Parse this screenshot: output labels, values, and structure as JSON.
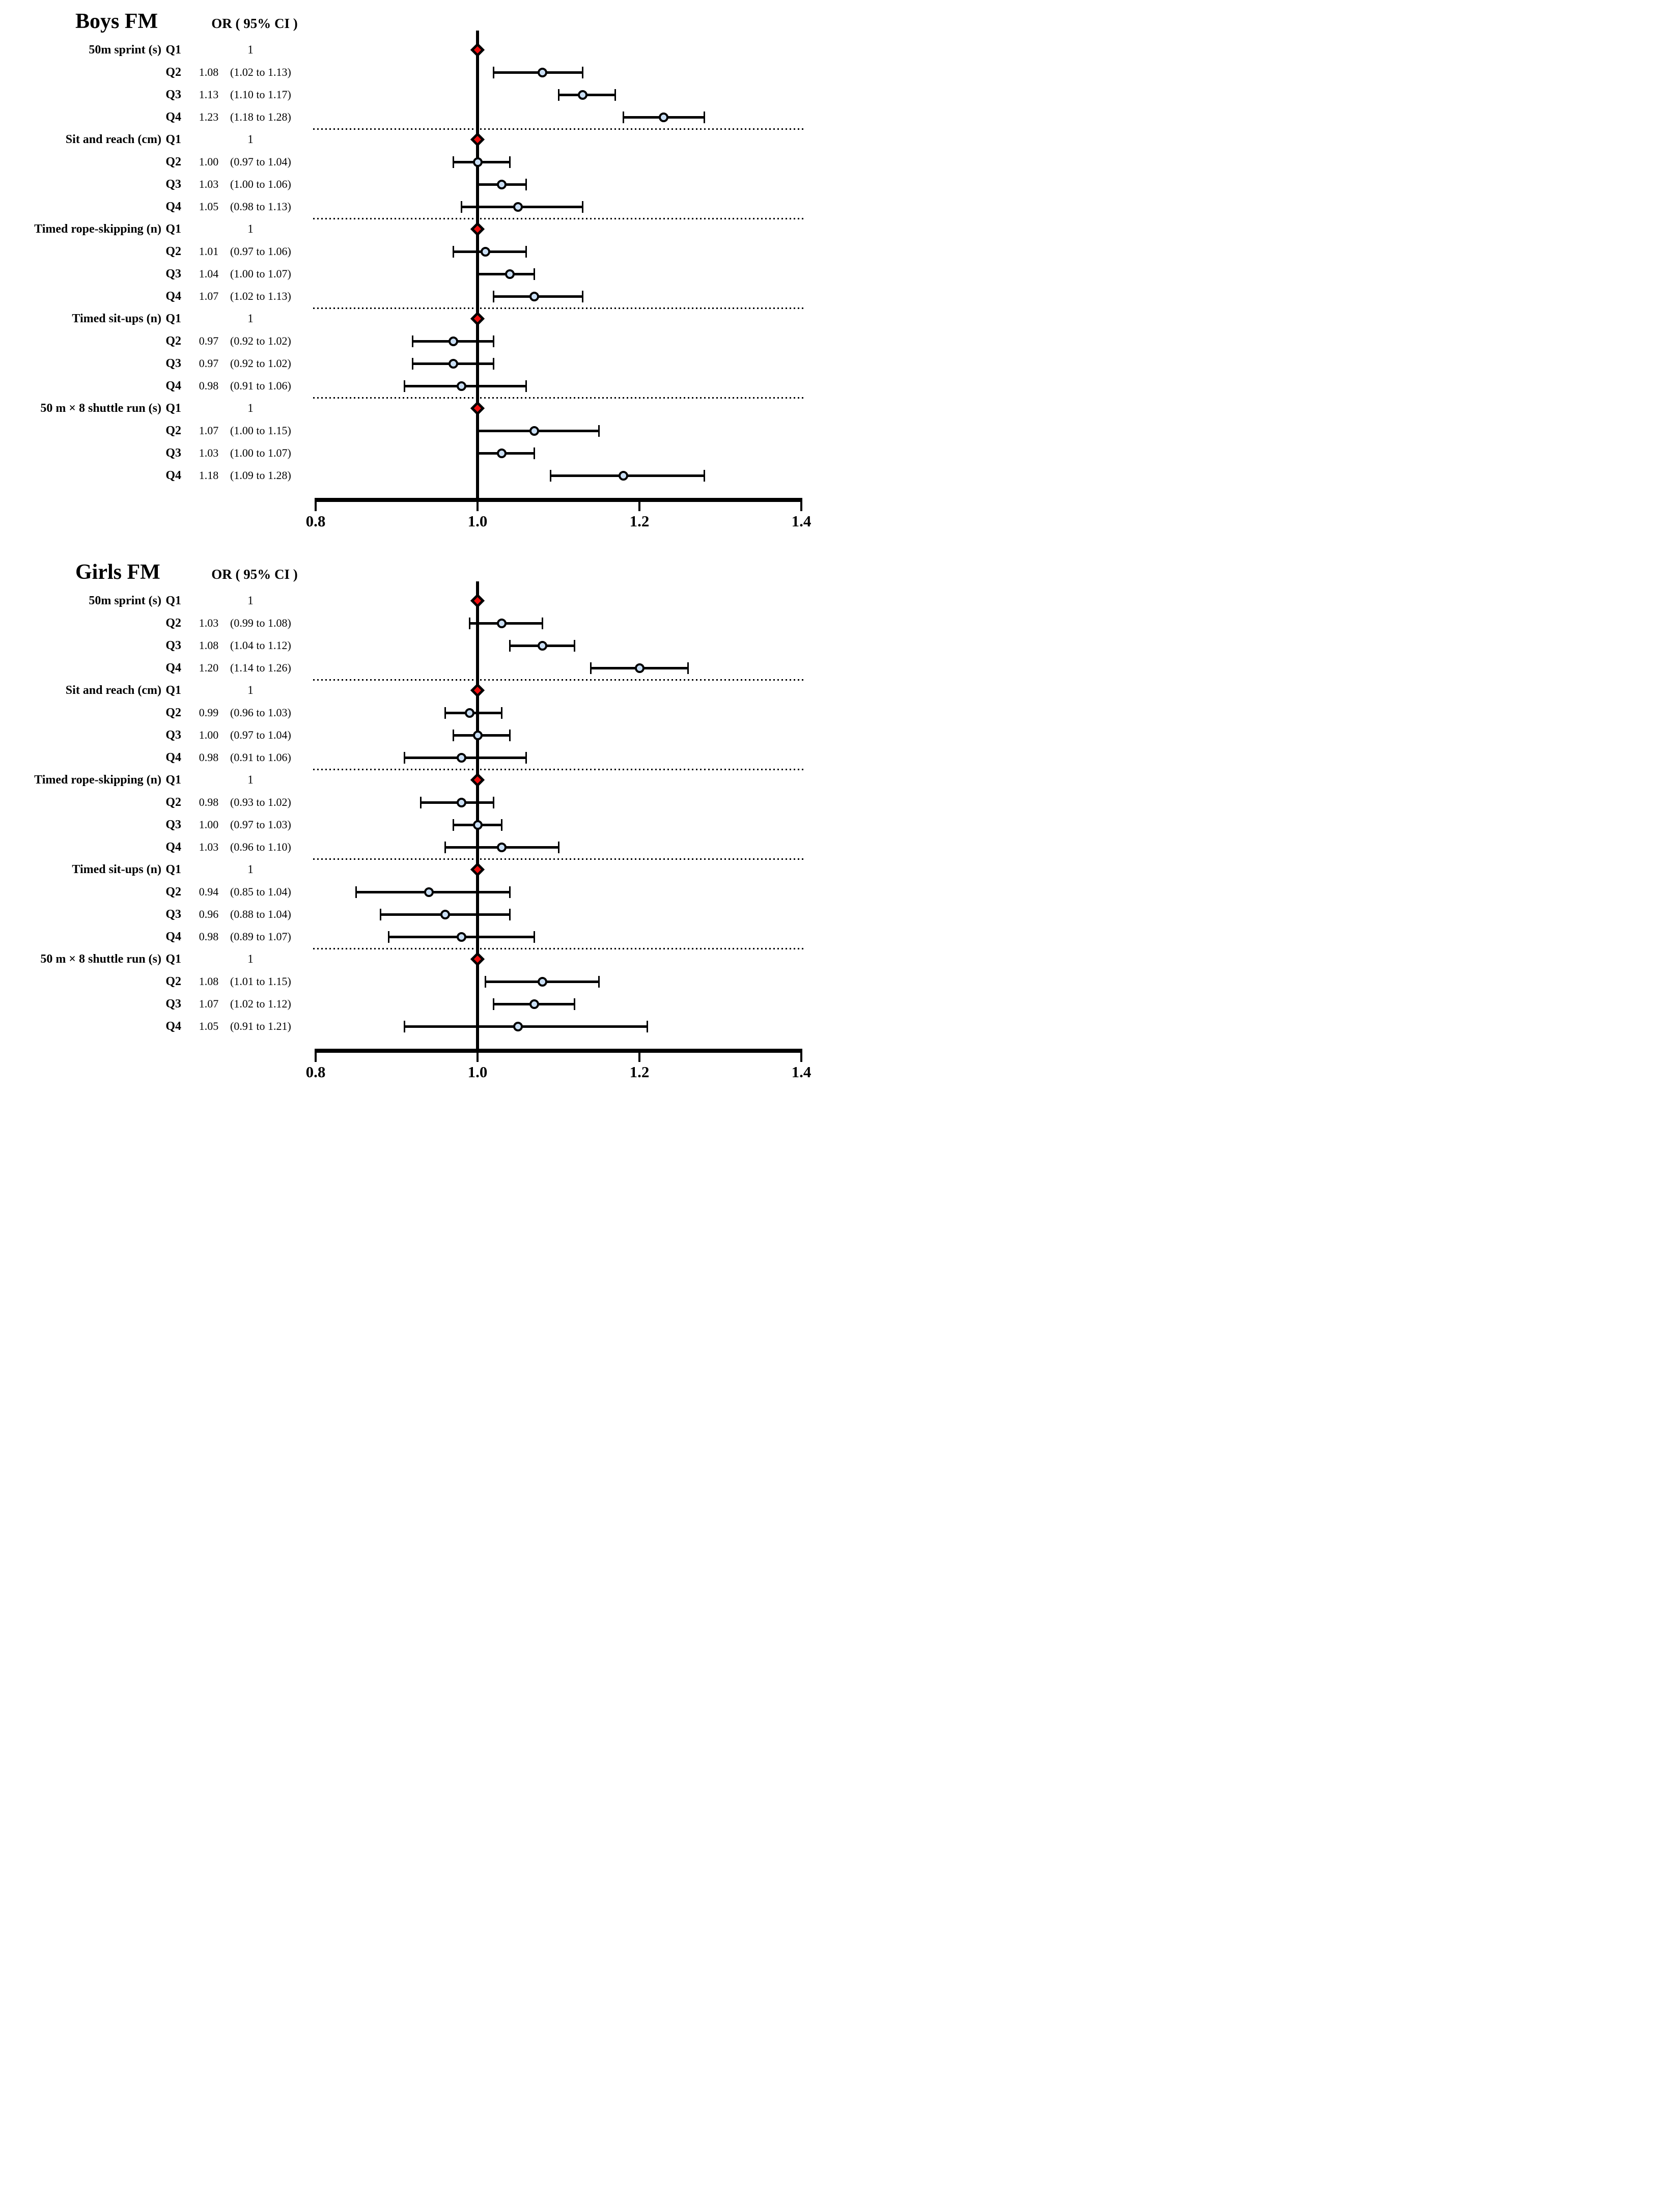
{
  "chart_data": {
    "type": "forest",
    "or_header": "OR ( 95% CI )",
    "x_axis": {
      "range": [
        0.8,
        1.4
      ],
      "ticks": [
        0.8,
        1.0,
        1.2,
        1.4
      ],
      "tick_labels": [
        "0.8",
        "1.0",
        "1.2",
        "1.4"
      ],
      "reference_line": 1.0
    },
    "colors": {
      "reference_diamond_fill": "#f10d0d",
      "estimate_marker_fill": "#cadff5",
      "marker_outline": "#000000"
    },
    "panels": [
      {
        "title": "Boys FM",
        "groups": [
          {
            "label": "50m sprint (s)",
            "rows": [
              {
                "q": "Q1",
                "or_label": "1",
                "reference": true
              },
              {
                "q": "Q2",
                "or_label": "1.08",
                "ci_label": "(1.02 to 1.13)",
                "or": 1.08,
                "lo": 1.02,
                "hi": 1.13
              },
              {
                "q": "Q3",
                "or_label": "1.13",
                "ci_label": "(1.10 to 1.17)",
                "or": 1.13,
                "lo": 1.1,
                "hi": 1.17
              },
              {
                "q": "Q4",
                "or_label": "1.23",
                "ci_label": "(1.18 to 1.28)",
                "or": 1.23,
                "lo": 1.18,
                "hi": 1.28
              }
            ]
          },
          {
            "label": "Sit and reach (cm)",
            "rows": [
              {
                "q": "Q1",
                "or_label": "1",
                "reference": true
              },
              {
                "q": "Q2",
                "or_label": "1.00",
                "ci_label": "(0.97 to 1.04)",
                "or": 1.0,
                "lo": 0.97,
                "hi": 1.04
              },
              {
                "q": "Q3",
                "or_label": "1.03",
                "ci_label": "(1.00 to 1.06)",
                "or": 1.03,
                "lo": 1.0,
                "hi": 1.06
              },
              {
                "q": "Q4",
                "or_label": "1.05",
                "ci_label": "(0.98 to 1.13)",
                "or": 1.05,
                "lo": 0.98,
                "hi": 1.13
              }
            ]
          },
          {
            "label": "Timed rope-skipping (n)",
            "rows": [
              {
                "q": "Q1",
                "or_label": "1",
                "reference": true
              },
              {
                "q": "Q2",
                "or_label": "1.01",
                "ci_label": "(0.97 to 1.06)",
                "or": 1.01,
                "lo": 0.97,
                "hi": 1.06
              },
              {
                "q": "Q3",
                "or_label": "1.04",
                "ci_label": "(1.00 to 1.07)",
                "or": 1.04,
                "lo": 1.0,
                "hi": 1.07
              },
              {
                "q": "Q4",
                "or_label": "1.07",
                "ci_label": "(1.02 to 1.13)",
                "or": 1.07,
                "lo": 1.02,
                "hi": 1.13
              }
            ]
          },
          {
            "label": "Timed sit-ups (n)",
            "rows": [
              {
                "q": "Q1",
                "or_label": "1",
                "reference": true
              },
              {
                "q": "Q2",
                "or_label": "0.97",
                "ci_label": "(0.92 to 1.02)",
                "or": 0.97,
                "lo": 0.92,
                "hi": 1.02
              },
              {
                "q": "Q3",
                "or_label": "0.97",
                "ci_label": "(0.92 to 1.02)",
                "or": 0.97,
                "lo": 0.92,
                "hi": 1.02
              },
              {
                "q": "Q4",
                "or_label": "0.98",
                "ci_label": "(0.91 to 1.06)",
                "or": 0.98,
                "lo": 0.91,
                "hi": 1.06
              }
            ]
          },
          {
            "label": "50 m × 8 shuttle run (s)",
            "rows": [
              {
                "q": "Q1",
                "or_label": "1",
                "reference": true
              },
              {
                "q": "Q2",
                "or_label": "1.07",
                "ci_label": "(1.00 to 1.15)",
                "or": 1.07,
                "lo": 1.0,
                "hi": 1.15
              },
              {
                "q": "Q3",
                "or_label": "1.03",
                "ci_label": "(1.00 to 1.07)",
                "or": 1.03,
                "lo": 1.0,
                "hi": 1.07
              },
              {
                "q": "Q4",
                "or_label": "1.18",
                "ci_label": "(1.09 to 1.28)",
                "or": 1.18,
                "lo": 1.09,
                "hi": 1.28
              }
            ]
          }
        ]
      },
      {
        "title": "Girls FM",
        "groups": [
          {
            "label": "50m sprint (s)",
            "rows": [
              {
                "q": "Q1",
                "or_label": "1",
                "reference": true
              },
              {
                "q": "Q2",
                "or_label": "1.03",
                "ci_label": "(0.99 to 1.08)",
                "or": 1.03,
                "lo": 0.99,
                "hi": 1.08
              },
              {
                "q": "Q3",
                "or_label": "1.08",
                "ci_label": "(1.04 to 1.12)",
                "or": 1.08,
                "lo": 1.04,
                "hi": 1.12
              },
              {
                "q": "Q4",
                "or_label": "1.20",
                "ci_label": "(1.14 to 1.26)",
                "or": 1.2,
                "lo": 1.14,
                "hi": 1.26
              }
            ]
          },
          {
            "label": "Sit and reach (cm)",
            "rows": [
              {
                "q": "Q1",
                "or_label": "1",
                "reference": true
              },
              {
                "q": "Q2",
                "or_label": "0.99",
                "ci_label": "(0.96 to 1.03)",
                "or": 0.99,
                "lo": 0.96,
                "hi": 1.03
              },
              {
                "q": "Q3",
                "or_label": "1.00",
                "ci_label": "(0.97 to 1.04)",
                "or": 1.0,
                "lo": 0.97,
                "hi": 1.04
              },
              {
                "q": "Q4",
                "or_label": "0.98",
                "ci_label": "(0.91 to 1.06)",
                "or": 0.98,
                "lo": 0.91,
                "hi": 1.06
              }
            ]
          },
          {
            "label": "Timed rope-skipping (n)",
            "rows": [
              {
                "q": "Q1",
                "or_label": "1",
                "reference": true
              },
              {
                "q": "Q2",
                "or_label": "0.98",
                "ci_label": "(0.93 to 1.02)",
                "or": 0.98,
                "lo": 0.93,
                "hi": 1.02
              },
              {
                "q": "Q3",
                "or_label": "1.00",
                "ci_label": "(0.97 to 1.03)",
                "or": 1.0,
                "lo": 0.97,
                "hi": 1.03
              },
              {
                "q": "Q4",
                "or_label": "1.03",
                "ci_label": "(0.96 to 1.10)",
                "or": 1.03,
                "lo": 0.96,
                "hi": 1.1
              }
            ]
          },
          {
            "label": "Timed sit-ups (n)",
            "rows": [
              {
                "q": "Q1",
                "or_label": "1",
                "reference": true
              },
              {
                "q": "Q2",
                "or_label": "0.94",
                "ci_label": "(0.85 to 1.04)",
                "or": 0.94,
                "lo": 0.85,
                "hi": 1.04
              },
              {
                "q": "Q3",
                "or_label": "0.96",
                "ci_label": "(0.88 to 1.04)",
                "or": 0.96,
                "lo": 0.88,
                "hi": 1.04
              },
              {
                "q": "Q4",
                "or_label": "0.98",
                "ci_label": "(0.89 to 1.07)",
                "or": 0.98,
                "lo": 0.89,
                "hi": 1.07
              }
            ]
          },
          {
            "label": "50 m × 8 shuttle run (s)",
            "rows": [
              {
                "q": "Q1",
                "or_label": "1",
                "reference": true
              },
              {
                "q": "Q2",
                "or_label": "1.08",
                "ci_label": "(1.01 to 1.15)",
                "or": 1.08,
                "lo": 1.01,
                "hi": 1.15
              },
              {
                "q": "Q3",
                "or_label": "1.07",
                "ci_label": "(1.02 to 1.12)",
                "or": 1.07,
                "lo": 1.02,
                "hi": 1.12
              },
              {
                "q": "Q4",
                "or_label": "1.05",
                "ci_label": "(0.91 to 1.21)",
                "or": 1.05,
                "lo": 0.91,
                "hi": 1.21
              }
            ]
          }
        ]
      }
    ]
  }
}
